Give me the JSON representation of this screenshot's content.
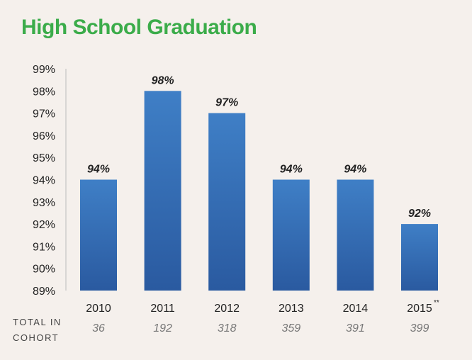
{
  "title": "High School Graduation",
  "chart_data": {
    "type": "bar",
    "title": "High School Graduation",
    "xlabel": "",
    "ylabel": "",
    "ylim": [
      89,
      99
    ],
    "y_ticks": [
      "89%",
      "90%",
      "91%",
      "92%",
      "93%",
      "94%",
      "95%",
      "96%",
      "97%",
      "98%",
      "99%"
    ],
    "categories": [
      "2010",
      "2011",
      "2012",
      "2013",
      "2014",
      "2015"
    ],
    "values": [
      94,
      98,
      97,
      94,
      94,
      92
    ],
    "data_labels": [
      "94%",
      "98%",
      "97%",
      "94%",
      "94%",
      "92%"
    ],
    "category_footnote": {
      "index": 5,
      "mark": "**"
    },
    "cohort": {
      "label_line1": "TOTAL IN",
      "label_line2": "COHORT",
      "values": [
        "36",
        "192",
        "318",
        "359",
        "391",
        "399"
      ]
    },
    "bar_colors": {
      "top": "#3f7fc6",
      "bottom": "#2a5aa0"
    },
    "grid": false
  }
}
